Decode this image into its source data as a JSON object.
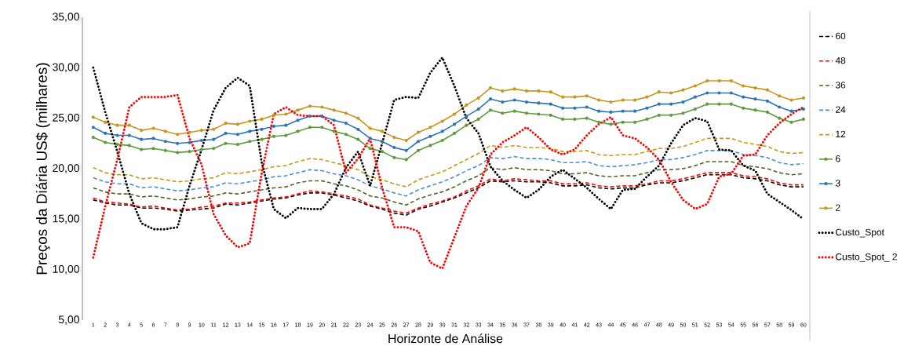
{
  "chart_data": {
    "type": "line",
    "xlabel": "Horizonte de Análise",
    "ylabel": "Preços da Diária US$ (milhares)",
    "categories": [
      "1",
      "2",
      "3",
      "4",
      "5",
      "6",
      "7",
      "8",
      "9",
      "10",
      "11",
      "12",
      "13",
      "14",
      "15",
      "16",
      "17",
      "18",
      "19",
      "20",
      "21",
      "22",
      "23",
      "24",
      "25",
      "26",
      "27",
      "28",
      "29",
      "30",
      "31",
      "32",
      "33",
      "34",
      "35",
      "36",
      "37",
      "38",
      "39",
      "40",
      "41",
      "42",
      "43",
      "44",
      "45",
      "46",
      "47",
      "48",
      "49",
      "50",
      "51",
      "52",
      "53",
      "54",
      "55",
      "56",
      "57",
      "58",
      "59",
      "60"
    ],
    "ylim": [
      5,
      35
    ],
    "yticks": [
      {
        "value": 5,
        "label": "5,00"
      },
      {
        "value": 10,
        "label": "10,00"
      },
      {
        "value": 15,
        "label": "15,00"
      },
      {
        "value": 20,
        "label": "20,00"
      },
      {
        "value": 25,
        "label": "25,00"
      },
      {
        "value": 30,
        "label": "30,00"
      },
      {
        "value": 35,
        "label": "35,00"
      }
    ],
    "legend": "right",
    "series": [
      {
        "name": "60",
        "color": "#000000",
        "line_style": "dashed",
        "marker": "none",
        "values": [
          16.9,
          16.6,
          16.4,
          16.4,
          16.1,
          16.1,
          16.0,
          15.8,
          15.9,
          16.0,
          16.1,
          16.5,
          16.4,
          16.6,
          16.8,
          17.0,
          17.1,
          17.4,
          17.6,
          17.6,
          17.4,
          17.1,
          16.8,
          16.3,
          16.0,
          15.6,
          15.4,
          16.0,
          16.3,
          16.7,
          17.1,
          17.6,
          18.1,
          18.8,
          18.7,
          18.8,
          18.7,
          18.7,
          18.6,
          18.3,
          18.3,
          18.4,
          18.1,
          18.0,
          18.1,
          18.1,
          18.4,
          18.6,
          18.6,
          18.8,
          19.1,
          19.4,
          19.4,
          19.4,
          19.1,
          19.0,
          18.8,
          18.4,
          18.2,
          18.2
        ]
      },
      {
        "name": "48",
        "color": "#ff0000",
        "line_style": "dashed",
        "marker": "none",
        "values": [
          17.1,
          16.7,
          16.6,
          16.5,
          16.2,
          16.3,
          16.1,
          15.9,
          16.0,
          16.2,
          16.3,
          16.6,
          16.6,
          16.7,
          16.9,
          17.1,
          17.2,
          17.5,
          17.8,
          17.7,
          17.5,
          17.3,
          17.0,
          16.4,
          16.1,
          15.8,
          15.6,
          16.1,
          16.5,
          16.8,
          17.2,
          17.8,
          18.3,
          19.0,
          18.8,
          19.0,
          18.9,
          18.8,
          18.8,
          18.5,
          18.5,
          18.6,
          18.3,
          18.2,
          18.3,
          18.3,
          18.5,
          18.8,
          18.8,
          19.0,
          19.3,
          19.6,
          19.6,
          19.6,
          19.3,
          19.2,
          19.0,
          18.6,
          18.4,
          18.4
        ]
      },
      {
        "name": "36",
        "color": "#4f6228",
        "line_style": "dashed",
        "marker": "none",
        "values": [
          18.1,
          17.7,
          17.5,
          17.5,
          17.2,
          17.3,
          17.1,
          16.9,
          17.0,
          17.2,
          17.3,
          17.6,
          17.5,
          17.7,
          17.9,
          18.1,
          18.2,
          18.6,
          18.8,
          18.8,
          18.5,
          18.3,
          17.9,
          17.3,
          17.1,
          16.7,
          16.4,
          17.0,
          17.4,
          17.7,
          18.2,
          18.8,
          19.3,
          20.1,
          19.9,
          20.1,
          19.9,
          19.9,
          19.8,
          19.5,
          19.5,
          19.6,
          19.3,
          19.2,
          19.3,
          19.3,
          19.6,
          19.9,
          19.9,
          20.0,
          20.3,
          20.7,
          20.7,
          20.7,
          20.3,
          20.2,
          20.0,
          19.6,
          19.4,
          19.5
        ]
      },
      {
        "name": "24",
        "color": "#4a90d0",
        "line_style": "dashed",
        "marker": "none",
        "values": [
          19.1,
          18.7,
          18.5,
          18.5,
          18.1,
          18.2,
          18.0,
          17.8,
          17.9,
          18.1,
          18.2,
          18.6,
          18.5,
          18.7,
          18.9,
          19.2,
          19.3,
          19.6,
          19.9,
          19.8,
          19.5,
          19.3,
          18.9,
          18.3,
          18.0,
          17.6,
          17.3,
          17.9,
          18.3,
          18.7,
          19.2,
          19.8,
          20.3,
          21.1,
          21.0,
          21.2,
          21.0,
          21.0,
          20.9,
          20.6,
          20.6,
          20.7,
          20.3,
          20.2,
          20.3,
          20.4,
          20.6,
          20.9,
          20.9,
          21.1,
          21.4,
          21.8,
          21.8,
          21.8,
          21.4,
          21.3,
          21.1,
          20.6,
          20.4,
          20.5
        ]
      },
      {
        "name": "12",
        "color": "#c49a14",
        "line_style": "dashed",
        "marker": "none",
        "values": [
          20.1,
          19.6,
          19.4,
          19.4,
          19.0,
          19.1,
          18.9,
          18.7,
          18.8,
          19.0,
          19.1,
          19.6,
          19.5,
          19.7,
          19.9,
          20.2,
          20.3,
          20.7,
          21.0,
          20.9,
          20.6,
          20.3,
          19.9,
          19.2,
          18.9,
          18.5,
          18.2,
          18.9,
          19.3,
          19.7,
          20.3,
          20.9,
          21.5,
          22.3,
          22.1,
          22.3,
          22.1,
          22.1,
          22.0,
          21.7,
          21.7,
          21.8,
          21.4,
          21.3,
          21.4,
          21.4,
          21.7,
          22.0,
          22.0,
          22.2,
          22.6,
          23.0,
          23.0,
          23.0,
          22.6,
          22.4,
          22.2,
          21.7,
          21.5,
          21.6
        ]
      },
      {
        "name": "6",
        "color": "#5f9b3c",
        "line_style": "solid",
        "marker": "circle",
        "values": [
          23.1,
          22.6,
          22.4,
          22.3,
          21.9,
          22.0,
          21.8,
          21.6,
          21.7,
          21.9,
          22.0,
          22.5,
          22.4,
          22.7,
          22.9,
          23.2,
          23.3,
          23.7,
          24.1,
          24.1,
          23.7,
          23.4,
          22.9,
          22.0,
          21.7,
          21.1,
          20.9,
          21.8,
          22.3,
          22.8,
          23.5,
          24.3,
          24.9,
          25.8,
          25.5,
          25.7,
          25.5,
          25.4,
          25.3,
          24.9,
          24.9,
          25.0,
          24.6,
          24.4,
          24.6,
          24.6,
          24.9,
          25.3,
          25.3,
          25.5,
          25.9,
          26.4,
          26.4,
          26.4,
          26.0,
          25.8,
          25.6,
          25.0,
          24.6,
          24.9
        ]
      },
      {
        "name": "3",
        "color": "#2e75b6",
        "line_style": "solid",
        "marker": "circle",
        "values": [
          24.1,
          23.5,
          23.3,
          23.3,
          22.9,
          23.0,
          22.7,
          22.5,
          22.6,
          22.8,
          22.9,
          23.5,
          23.4,
          23.7,
          23.9,
          24.2,
          24.3,
          24.8,
          25.2,
          25.2,
          24.8,
          24.5,
          23.9,
          23.0,
          22.7,
          22.1,
          21.8,
          22.7,
          23.2,
          23.7,
          24.4,
          25.2,
          25.9,
          26.9,
          26.6,
          26.8,
          26.6,
          26.5,
          26.4,
          26.0,
          26.0,
          26.1,
          25.7,
          25.6,
          25.7,
          25.7,
          26.0,
          26.4,
          26.4,
          26.6,
          27.1,
          27.5,
          27.5,
          27.5,
          27.1,
          26.9,
          26.7,
          26.1,
          25.7,
          25.9
        ]
      },
      {
        "name": "2",
        "color": "#c8961e",
        "line_style": "solid",
        "marker": "circle",
        "values": [
          25.1,
          24.6,
          24.3,
          24.3,
          23.8,
          24.0,
          23.7,
          23.4,
          23.6,
          23.8,
          23.9,
          24.5,
          24.4,
          24.7,
          24.9,
          25.3,
          25.4,
          25.8,
          26.2,
          26.1,
          25.8,
          25.5,
          25.0,
          24.0,
          23.7,
          23.1,
          22.8,
          23.6,
          24.1,
          24.7,
          25.4,
          26.3,
          27.0,
          28.0,
          27.7,
          27.9,
          27.7,
          27.7,
          27.6,
          27.1,
          27.1,
          27.2,
          26.8,
          26.6,
          26.8,
          26.8,
          27.1,
          27.6,
          27.5,
          27.8,
          28.2,
          28.7,
          28.7,
          28.7,
          28.2,
          28.0,
          27.8,
          27.2,
          26.8,
          27.0
        ]
      },
      {
        "name": "Custo_Spot",
        "color": "#000000",
        "line_style": "dotted",
        "marker": "none",
        "values": [
          30.0,
          25.6,
          21.7,
          17.5,
          14.6,
          14.0,
          14.0,
          14.2,
          18.3,
          21.9,
          25.8,
          28.0,
          29.0,
          28.2,
          20.6,
          16.0,
          15.1,
          16.1,
          16.0,
          16.0,
          17.5,
          20.1,
          21.7,
          18.3,
          22.5,
          26.8,
          27.1,
          27.0,
          29.5,
          31.0,
          28.2,
          25.0,
          23.5,
          20.2,
          18.8,
          17.9,
          17.1,
          17.9,
          19.2,
          19.9,
          19.0,
          18.1,
          17.0,
          16.0,
          17.9,
          18.0,
          19.2,
          20.3,
          22.5,
          24.3,
          25.0,
          24.7,
          21.9,
          21.8,
          20.3,
          19.8,
          17.5,
          16.7,
          15.9,
          15.0
        ]
      },
      {
        "name": "Custo_Spot_ 2",
        "color": "#ff0000",
        "line_style": "dotted",
        "marker": "none",
        "values": [
          11.2,
          16.3,
          20.9,
          26.1,
          27.1,
          27.1,
          27.1,
          27.3,
          23.0,
          20.4,
          15.5,
          13.4,
          12.2,
          12.6,
          19.6,
          25.4,
          26.1,
          25.3,
          25.2,
          25.2,
          24.3,
          19.6,
          21.0,
          23.0,
          18.1,
          14.2,
          14.2,
          13.8,
          10.7,
          10.1,
          13.2,
          16.3,
          18.1,
          21.4,
          22.6,
          23.3,
          24.1,
          23.1,
          21.9,
          21.4,
          21.9,
          23.3,
          24.4,
          25.1,
          23.3,
          23.0,
          22.1,
          20.9,
          18.7,
          16.9,
          16.0,
          16.5,
          19.2,
          19.5,
          21.3,
          21.4,
          23.3,
          24.5,
          25.4,
          26.1
        ]
      }
    ]
  }
}
